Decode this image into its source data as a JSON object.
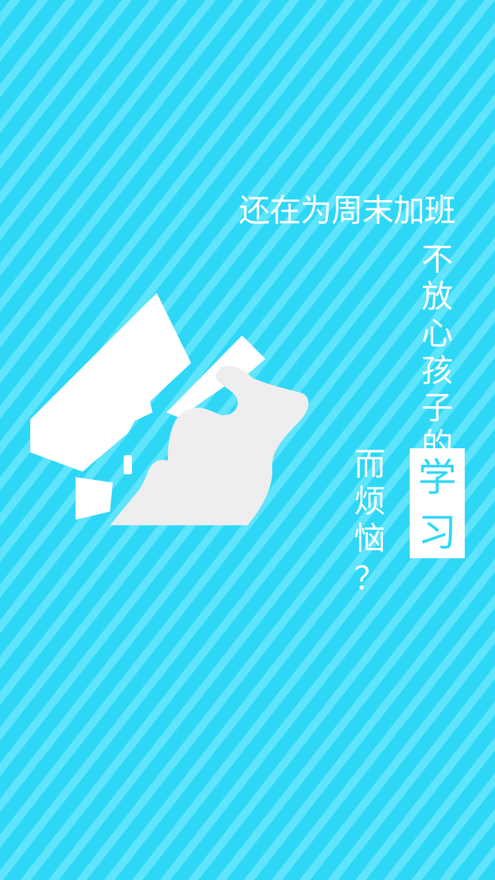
{
  "headline": "还在为周末加班",
  "column_right": [
    "不",
    "放",
    "心",
    "孩",
    "子",
    "的"
  ],
  "highlight_chars": [
    "学",
    "习"
  ],
  "column_left": [
    "而",
    "烦",
    "恼",
    "？"
  ],
  "colors": {
    "background": "#2fd7f7",
    "stripe": "#5ee4fb",
    "text": "#ffffff",
    "figure": "#eeeeee"
  }
}
